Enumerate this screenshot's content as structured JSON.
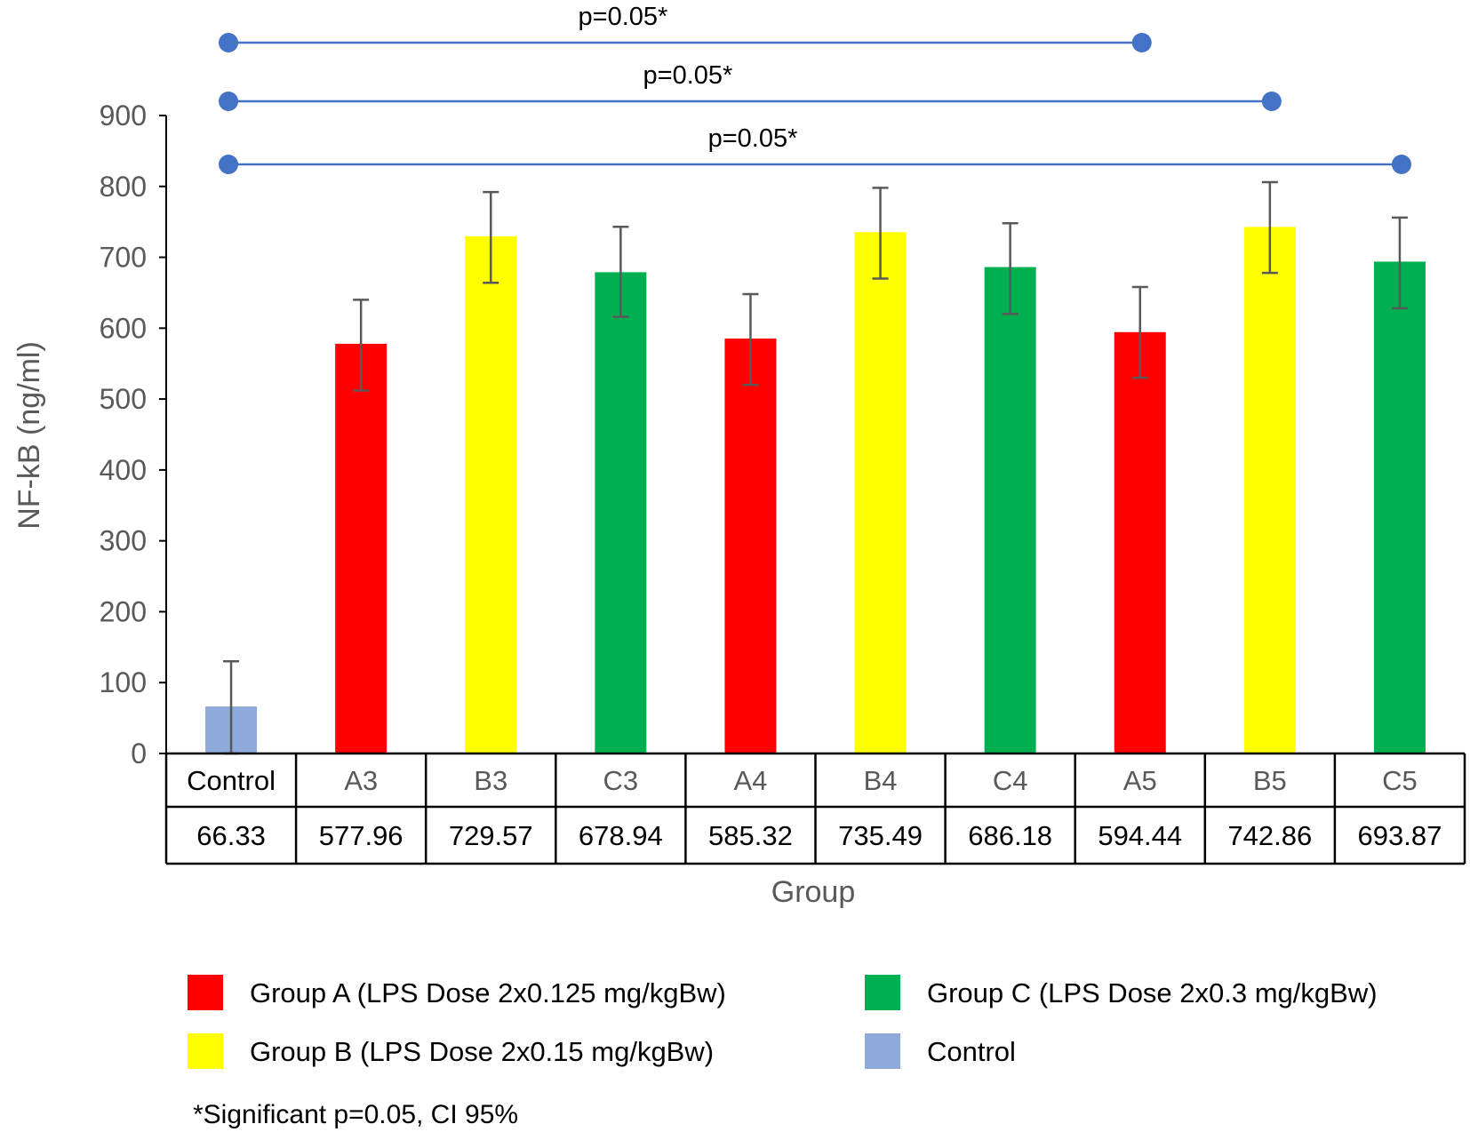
{
  "chart_data": {
    "type": "bar",
    "xlabel": "Group",
    "ylabel": "NF-kB (ng/ml)",
    "ylim": [
      0,
      900
    ],
    "yticks": [
      0,
      100,
      200,
      300,
      400,
      500,
      600,
      700,
      800,
      900
    ],
    "grid": false,
    "categories": [
      "Control",
      "A3",
      "B3",
      "C3",
      "A4",
      "B4",
      "C4",
      "A5",
      "B5",
      "C5"
    ],
    "values": [
      66.33,
      577.96,
      729.57,
      678.94,
      585.32,
      735.49,
      686.18,
      594.44,
      742.86,
      693.87
    ],
    "value_labels": [
      "66.33",
      "577.96",
      "729.57",
      "678.94",
      "585.32",
      "735.49",
      "686.18",
      "594.44",
      "742.86",
      "693.87"
    ],
    "error_low": [
      0,
      512,
      664,
      616,
      520,
      670,
      620,
      530,
      678,
      628
    ],
    "error_high": [
      130,
      640,
      792,
      743,
      648,
      798,
      748,
      658,
      806,
      756
    ],
    "groups": [
      "control",
      "A",
      "B",
      "C",
      "A",
      "B",
      "C",
      "A",
      "B",
      "C"
    ],
    "colors": {
      "A": "#ff0000",
      "B": "#ffff00",
      "C": "#00b050",
      "control": "#8eaadb",
      "bracket": "#4472c4"
    },
    "significance": [
      {
        "from": "Control",
        "to": "A5",
        "label": "p=0.05*"
      },
      {
        "from": "Control",
        "to": "B5",
        "label": "p=0.05*"
      },
      {
        "from": "Control",
        "to": "C5",
        "label": "p=0.05*"
      }
    ],
    "legend": {
      "placement": "bottom",
      "entries": [
        {
          "group": "A",
          "label": "Group A (LPS Dose 2x0.125 mg/kgBw)"
        },
        {
          "group": "C",
          "label": "Group C (LPS Dose 2x0.3 mg/kgBw)"
        },
        {
          "group": "B",
          "label": "Group  B (LPS Dose 2x0.15 mg/kgBw)"
        },
        {
          "group": "control",
          "label": "Control"
        }
      ]
    },
    "footnote": "*Significant p=0.05, CI 95%"
  }
}
